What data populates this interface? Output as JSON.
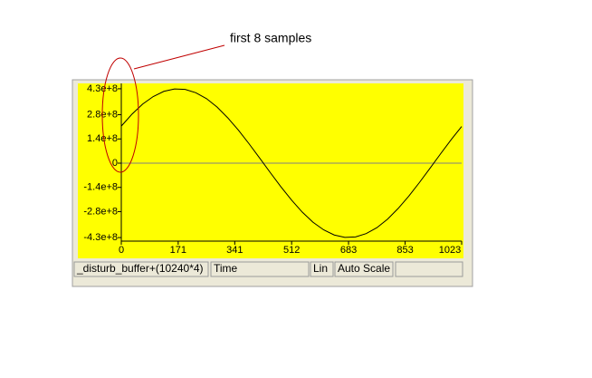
{
  "chart_data": {
    "type": "line",
    "annotation": "first 8 samples",
    "x": [
      0,
      32,
      64,
      96,
      128,
      160,
      192,
      224,
      256,
      288,
      320,
      352,
      384,
      416,
      448,
      480,
      512,
      544,
      576,
      608,
      640,
      672,
      704,
      736,
      768,
      800,
      832,
      864,
      896,
      928,
      960,
      992,
      1023
    ],
    "series": [
      {
        "name": "_disturb_buffer+(10240*4)",
        "color": "#000000",
        "values": [
          214000000,
          283000000,
          341000000,
          385000000,
          415000000,
          429000000,
          426000000,
          407000000,
          373000000,
          324000000,
          262000000,
          191000000,
          112000000,
          29000000,
          -55000000,
          -137000000,
          -214000000,
          -283000000,
          -341000000,
          -385000000,
          -415000000,
          -429000000,
          -426000000,
          -407000000,
          -373000000,
          -324000000,
          -262000000,
          -191000000,
          -112000000,
          -29000000,
          55000000,
          137000000,
          212000000
        ]
      }
    ],
    "xlim": [
      0,
      1023
    ],
    "xticks": [
      0,
      171,
      341,
      512,
      683,
      853,
      1023
    ],
    "ylim": [
      -440000000,
      440000000
    ],
    "yticks": [
      {
        "value": 430000000,
        "label": "4.3e+8"
      },
      {
        "value": 280000000,
        "label": "2.8e+8"
      },
      {
        "value": 140000000,
        "label": "1.4e+8"
      },
      0,
      {
        "value": -140000000,
        "label": "-1.4e+8"
      },
      {
        "value": -280000000,
        "label": "-2.8e+8"
      },
      {
        "value": -430000000,
        "label": "-4.3e+8"
      }
    ],
    "background": "#ffff00",
    "zero_line_color": "#808080"
  },
  "status_bar": [
    "_disturb_buffer+(10240*4)",
    "Time",
    "Lin",
    "Auto Scale"
  ]
}
